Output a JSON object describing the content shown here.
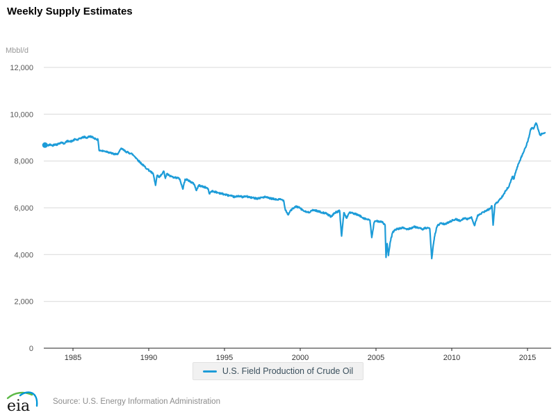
{
  "header": {
    "title": "Weekly Supply Estimates"
  },
  "legend": {
    "label": "U.S. Field Production of Crude Oil"
  },
  "footer": {
    "logo_text": "eia",
    "source_text": "Source: U.S. Energy Information Administration",
    "logo_colors": {
      "green_arc": "#5CB947",
      "blue_arc": "#0096D7",
      "text": "#111111"
    }
  },
  "chart_data": {
    "type": "line",
    "title": "Weekly Supply Estimates",
    "y_unit_label": "Mbbl/d",
    "xlabel": "",
    "ylabel": "Mbbl/d",
    "ylim": [
      0,
      12000
    ],
    "xlim": [
      1983.15,
      2016.55
    ],
    "grid": "horizontal",
    "legend_position": "bottom-center",
    "noise_amplitude": 35,
    "colors": {
      "line": "#1D9CD8",
      "grid": "#D8D8D8",
      "axis": "#222222",
      "y_label": "#555555",
      "x_label": "#333333"
    },
    "y_ticks": [
      {
        "value": 0,
        "label": "0"
      },
      {
        "value": 2000,
        "label": "2,000"
      },
      {
        "value": 4000,
        "label": "4,000"
      },
      {
        "value": 6000,
        "label": "6,000"
      },
      {
        "value": 8000,
        "label": "8,000"
      },
      {
        "value": 10000,
        "label": "10,000"
      },
      {
        "value": 12000,
        "label": "12,000"
      }
    ],
    "x_ticks": [
      {
        "year": 1985,
        "label": "1985"
      },
      {
        "year": 1990,
        "label": "1990"
      },
      {
        "year": 1995,
        "label": "1995"
      },
      {
        "year": 2000,
        "label": "2000"
      },
      {
        "year": 2005,
        "label": "2005"
      },
      {
        "year": 2010,
        "label": "2010"
      },
      {
        "year": 2015,
        "label": "2015"
      }
    ],
    "series": [
      {
        "name": "U.S. Field Production of Crude Oil",
        "color": "#1D9CD8",
        "points": [
          [
            1983.15,
            8680
          ],
          [
            1983.25,
            8730
          ],
          [
            1983.35,
            8660
          ],
          [
            1983.5,
            8700
          ],
          [
            1983.65,
            8660
          ],
          [
            1983.8,
            8720
          ],
          [
            1983.95,
            8700
          ],
          [
            1984.1,
            8760
          ],
          [
            1984.25,
            8800
          ],
          [
            1984.4,
            8740
          ],
          [
            1984.55,
            8820
          ],
          [
            1984.7,
            8860
          ],
          [
            1984.85,
            8830
          ],
          [
            1985.0,
            8870
          ],
          [
            1985.15,
            8930
          ],
          [
            1985.3,
            8900
          ],
          [
            1985.45,
            8960
          ],
          [
            1985.6,
            9000
          ],
          [
            1985.75,
            9030
          ],
          [
            1985.9,
            8990
          ],
          [
            1986.05,
            9040
          ],
          [
            1986.2,
            9050
          ],
          [
            1986.35,
            8990
          ],
          [
            1986.5,
            8950
          ],
          [
            1986.65,
            8910
          ],
          [
            1986.72,
            8470
          ],
          [
            1986.9,
            8430
          ],
          [
            1987.1,
            8420
          ],
          [
            1987.3,
            8390
          ],
          [
            1987.5,
            8340
          ],
          [
            1987.7,
            8300
          ],
          [
            1987.9,
            8280
          ],
          [
            1988.05,
            8390
          ],
          [
            1988.2,
            8540
          ],
          [
            1988.35,
            8460
          ],
          [
            1988.5,
            8400
          ],
          [
            1988.7,
            8350
          ],
          [
            1988.9,
            8300
          ],
          [
            1989.1,
            8180
          ],
          [
            1989.3,
            8030
          ],
          [
            1989.5,
            7900
          ],
          [
            1989.7,
            7780
          ],
          [
            1989.9,
            7660
          ],
          [
            1990.1,
            7560
          ],
          [
            1990.3,
            7440
          ],
          [
            1990.45,
            6960
          ],
          [
            1990.55,
            7380
          ],
          [
            1990.7,
            7300
          ],
          [
            1990.85,
            7420
          ],
          [
            1991.0,
            7560
          ],
          [
            1991.1,
            7260
          ],
          [
            1991.2,
            7460
          ],
          [
            1991.35,
            7380
          ],
          [
            1991.5,
            7340
          ],
          [
            1991.7,
            7300
          ],
          [
            1991.9,
            7280
          ],
          [
            1992.05,
            7230
          ],
          [
            1992.25,
            6800
          ],
          [
            1992.4,
            7220
          ],
          [
            1992.6,
            7180
          ],
          [
            1992.8,
            7100
          ],
          [
            1993.0,
            7010
          ],
          [
            1993.15,
            6740
          ],
          [
            1993.3,
            6960
          ],
          [
            1993.5,
            6920
          ],
          [
            1993.7,
            6880
          ],
          [
            1993.9,
            6830
          ],
          [
            1994.0,
            6600
          ],
          [
            1994.15,
            6720
          ],
          [
            1994.35,
            6690
          ],
          [
            1994.55,
            6650
          ],
          [
            1994.75,
            6620
          ],
          [
            1994.95,
            6580
          ],
          [
            1995.2,
            6540
          ],
          [
            1995.45,
            6500
          ],
          [
            1995.7,
            6460
          ],
          [
            1995.95,
            6510
          ],
          [
            1996.2,
            6460
          ],
          [
            1996.45,
            6490
          ],
          [
            1996.7,
            6440
          ],
          [
            1996.95,
            6420
          ],
          [
            1997.2,
            6400
          ],
          [
            1997.45,
            6440
          ],
          [
            1997.7,
            6460
          ],
          [
            1997.95,
            6410
          ],
          [
            1998.2,
            6380
          ],
          [
            1998.45,
            6350
          ],
          [
            1998.7,
            6360
          ],
          [
            1998.9,
            6320
          ],
          [
            1999.0,
            5960
          ],
          [
            1999.2,
            5700
          ],
          [
            1999.35,
            5880
          ],
          [
            1999.55,
            5980
          ],
          [
            1999.75,
            6060
          ],
          [
            1999.95,
            6000
          ],
          [
            2000.15,
            5900
          ],
          [
            2000.35,
            5830
          ],
          [
            2000.55,
            5800
          ],
          [
            2000.75,
            5880
          ],
          [
            2000.95,
            5900
          ],
          [
            2001.2,
            5850
          ],
          [
            2001.45,
            5800
          ],
          [
            2001.7,
            5760
          ],
          [
            2001.9,
            5680
          ],
          [
            2002.05,
            5620
          ],
          [
            2002.25,
            5780
          ],
          [
            2002.45,
            5830
          ],
          [
            2002.6,
            5870
          ],
          [
            2002.73,
            4790
          ],
          [
            2002.88,
            5790
          ],
          [
            2003.05,
            5560
          ],
          [
            2003.25,
            5810
          ],
          [
            2003.5,
            5760
          ],
          [
            2003.75,
            5710
          ],
          [
            2003.95,
            5650
          ],
          [
            2004.15,
            5570
          ],
          [
            2004.4,
            5510
          ],
          [
            2004.6,
            5470
          ],
          [
            2004.72,
            4730
          ],
          [
            2004.88,
            5380
          ],
          [
            2005.05,
            5440
          ],
          [
            2005.25,
            5410
          ],
          [
            2005.45,
            5380
          ],
          [
            2005.6,
            5250
          ],
          [
            2005.66,
            3880
          ],
          [
            2005.74,
            4470
          ],
          [
            2005.82,
            3960
          ],
          [
            2005.95,
            4560
          ],
          [
            2006.1,
            4950
          ],
          [
            2006.3,
            5080
          ],
          [
            2006.55,
            5110
          ],
          [
            2006.8,
            5150
          ],
          [
            2007.05,
            5080
          ],
          [
            2007.3,
            5130
          ],
          [
            2007.55,
            5190
          ],
          [
            2007.8,
            5150
          ],
          [
            2008.05,
            5080
          ],
          [
            2008.3,
            5140
          ],
          [
            2008.55,
            5100
          ],
          [
            2008.68,
            3830
          ],
          [
            2008.78,
            4410
          ],
          [
            2008.9,
            4900
          ],
          [
            2009.05,
            5240
          ],
          [
            2009.3,
            5340
          ],
          [
            2009.55,
            5290
          ],
          [
            2009.8,
            5390
          ],
          [
            2010.05,
            5460
          ],
          [
            2010.3,
            5510
          ],
          [
            2010.55,
            5440
          ],
          [
            2010.8,
            5560
          ],
          [
            2011.05,
            5510
          ],
          [
            2011.3,
            5610
          ],
          [
            2011.5,
            5240
          ],
          [
            2011.7,
            5660
          ],
          [
            2011.9,
            5730
          ],
          [
            2012.1,
            5820
          ],
          [
            2012.3,
            5880
          ],
          [
            2012.5,
            5950
          ],
          [
            2012.65,
            6080
          ],
          [
            2012.73,
            5260
          ],
          [
            2012.85,
            6150
          ],
          [
            2013.0,
            6230
          ],
          [
            2013.2,
            6370
          ],
          [
            2013.4,
            6560
          ],
          [
            2013.6,
            6760
          ],
          [
            2013.8,
            6960
          ],
          [
            2014.0,
            7340
          ],
          [
            2014.1,
            7230
          ],
          [
            2014.25,
            7600
          ],
          [
            2014.45,
            7950
          ],
          [
            2014.65,
            8250
          ],
          [
            2014.85,
            8550
          ],
          [
            2015.0,
            8820
          ],
          [
            2015.1,
            9020
          ],
          [
            2015.2,
            9330
          ],
          [
            2015.3,
            9420
          ],
          [
            2015.4,
            9370
          ],
          [
            2015.5,
            9560
          ],
          [
            2015.57,
            9610
          ],
          [
            2015.65,
            9480
          ],
          [
            2015.75,
            9250
          ],
          [
            2015.85,
            9100
          ],
          [
            2015.95,
            9160
          ],
          [
            2016.05,
            9190
          ],
          [
            2016.15,
            9210
          ]
        ]
      }
    ]
  }
}
